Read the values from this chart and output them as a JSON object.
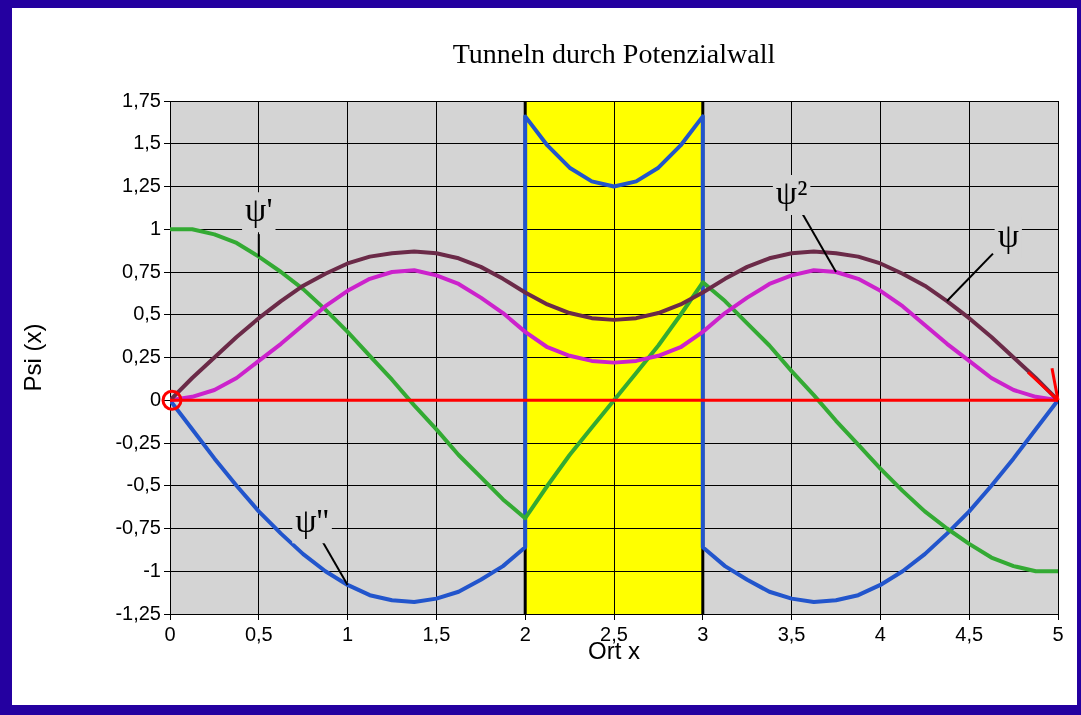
{
  "chart_data": {
    "type": "line",
    "title": "Tunneln durch Potenzialwall",
    "xlabel": "Ort x",
    "ylabel": "Psi (x)",
    "x": [
      0,
      0.125,
      0.25,
      0.375,
      0.5,
      0.625,
      0.75,
      0.875,
      1,
      1.125,
      1.25,
      1.375,
      1.5,
      1.625,
      1.75,
      1.875,
      2,
      2.125,
      2.25,
      2.375,
      2.5,
      2.625,
      2.75,
      2.875,
      3,
      3.125,
      3.25,
      3.375,
      3.5,
      3.625,
      3.75,
      3.875,
      4,
      4.125,
      4.25,
      4.375,
      4.5,
      4.625,
      4.75,
      4.875,
      5
    ],
    "series": [
      {
        "name": "ψ",
        "color": "#6b2a48",
        "values": [
          0,
          0.13,
          0.25,
          0.37,
          0.48,
          0.58,
          0.67,
          0.74,
          0.8,
          0.84,
          0.86,
          0.87,
          0.86,
          0.83,
          0.78,
          0.71,
          0.63,
          0.56,
          0.51,
          0.48,
          0.47,
          0.48,
          0.51,
          0.56,
          0.63,
          0.71,
          0.78,
          0.83,
          0.86,
          0.87,
          0.86,
          0.84,
          0.8,
          0.74,
          0.67,
          0.58,
          0.48,
          0.37,
          0.25,
          0.13,
          0
        ]
      },
      {
        "name": "ψ²",
        "color": "#cc22cc",
        "values": [
          0,
          0.02,
          0.06,
          0.13,
          0.23,
          0.33,
          0.44,
          0.55,
          0.64,
          0.71,
          0.75,
          0.76,
          0.73,
          0.68,
          0.6,
          0.51,
          0.4,
          0.31,
          0.26,
          0.23,
          0.22,
          0.23,
          0.26,
          0.31,
          0.4,
          0.51,
          0.6,
          0.68,
          0.73,
          0.76,
          0.75,
          0.71,
          0.64,
          0.55,
          0.44,
          0.33,
          0.23,
          0.13,
          0.06,
          0.02,
          0
        ]
      },
      {
        "name": "ψ'",
        "color": "#33aa33",
        "values": [
          1,
          1,
          0.97,
          0.92,
          0.84,
          0.75,
          0.65,
          0.53,
          0.4,
          0.26,
          0.12,
          -0.03,
          -0.17,
          -0.32,
          -0.45,
          -0.58,
          -0.69,
          -0.5,
          -0.32,
          -0.16,
          0,
          0.16,
          0.32,
          0.5,
          0.69,
          0.58,
          0.45,
          0.32,
          0.17,
          0.03,
          -0.12,
          -0.26,
          -0.4,
          -0.53,
          -0.65,
          -0.75,
          -0.84,
          -0.92,
          -0.97,
          -1,
          -1
        ]
      },
      {
        "name": "ψ''",
        "color": "#2255cc",
        "x": [
          0,
          0.125,
          0.25,
          0.375,
          0.5,
          0.625,
          0.75,
          0.875,
          1,
          1.125,
          1.25,
          1.375,
          1.5,
          1.625,
          1.75,
          1.875,
          2,
          2,
          2.125,
          2.25,
          2.375,
          2.5,
          2.625,
          2.75,
          2.875,
          3,
          3,
          3.125,
          3.25,
          3.375,
          3.5,
          3.625,
          3.75,
          3.875,
          4,
          4.125,
          4.25,
          4.375,
          4.5,
          4.625,
          4.75,
          4.875,
          5
        ],
        "values": [
          0,
          -0.17,
          -0.34,
          -0.5,
          -0.65,
          -0.78,
          -0.9,
          -1,
          -1.08,
          -1.14,
          -1.17,
          -1.18,
          -1.16,
          -1.12,
          -1.05,
          -0.97,
          -0.86,
          1.66,
          1.49,
          1.36,
          1.28,
          1.25,
          1.28,
          1.36,
          1.49,
          1.66,
          -0.86,
          -0.97,
          -1.05,
          -1.12,
          -1.16,
          -1.18,
          -1.17,
          -1.14,
          -1.08,
          -1,
          -0.9,
          -0.78,
          -0.65,
          -0.5,
          -0.34,
          -0.17,
          0
        ]
      }
    ],
    "xlim": [
      0,
      5
    ],
    "xticks": [
      0,
      {
        "value": 0.5,
        "label": "0,5"
      },
      1,
      {
        "value": 1.5,
        "label": "1,5"
      },
      2,
      {
        "value": 2.5,
        "label": "2,5"
      },
      3,
      {
        "value": 3.5,
        "label": "3,5"
      },
      4,
      {
        "value": 4.5,
        "label": "4,5"
      },
      5
    ],
    "ylim": [
      -1.25,
      1.75
    ],
    "yticks": [
      {
        "value": -1.25,
        "label": "-1,25"
      },
      -1,
      {
        "value": -0.75,
        "label": "-0,75"
      },
      {
        "value": -0.5,
        "label": "-0,5"
      },
      {
        "value": -0.25,
        "label": "-0,25"
      },
      0,
      {
        "value": 0.25,
        "label": "0,25"
      },
      {
        "value": 0.5,
        "label": "0,5"
      },
      {
        "value": 0.75,
        "label": "0,75"
      },
      1,
      {
        "value": 1.25,
        "label": "1,25"
      },
      {
        "value": 1.5,
        "label": "1,5"
      },
      {
        "value": 1.75,
        "label": "1,75"
      }
    ],
    "ref_lines": [
      {
        "axis": "y",
        "value": 0,
        "color": "#ff0000"
      }
    ],
    "bands": [
      {
        "axis": "x",
        "from": 2,
        "to": 3,
        "color": "#ffff00"
      }
    ],
    "grid": true,
    "legend": false,
    "marker": "none",
    "line_style": "solid"
  }
}
